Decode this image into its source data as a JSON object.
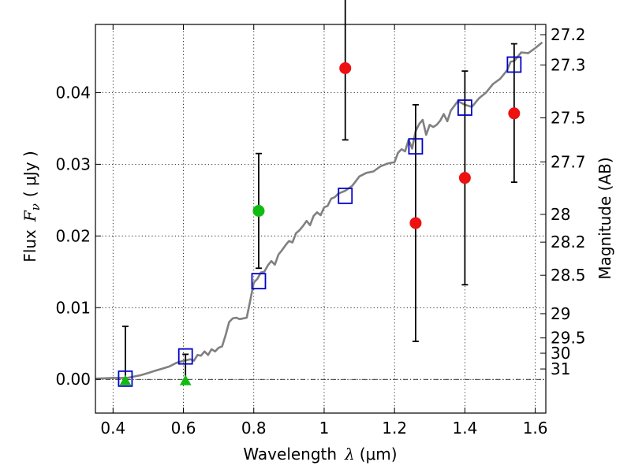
{
  "chart_data": {
    "type": "scatter",
    "xlabel_text": "Wavelength",
    "xlabel_symbol": "λ",
    "xlabel_unit": "(μm)",
    "ylabel_text": "Flux",
    "ylabel_symbol": "F",
    "ylabel_symbol_sub": "ν",
    "ylabel_unit": "( μJy )",
    "y2label": "Magnitude (AB)",
    "xlim": [
      0.35,
      1.63
    ],
    "ylim": [
      -0.0047,
      0.0495
    ],
    "grid": true,
    "x_ticks": [
      {
        "value": 0.4,
        "label": "0.4"
      },
      {
        "value": 0.6,
        "label": "0.6"
      },
      {
        "value": 0.8,
        "label": "0.8"
      },
      {
        "value": 1.0,
        "label": "1"
      },
      {
        "value": 1.2,
        "label": "1.2"
      },
      {
        "value": 1.4,
        "label": "1.4"
      },
      {
        "value": 1.6,
        "label": "1.6"
      }
    ],
    "y_ticks": [
      {
        "value": 0.0,
        "label": "0.00"
      },
      {
        "value": 0.01,
        "label": "0.01"
      },
      {
        "value": 0.02,
        "label": "0.02"
      },
      {
        "value": 0.03,
        "label": "0.03"
      },
      {
        "value": 0.04,
        "label": "0.04"
      }
    ],
    "mag_ticks": [
      {
        "label": "27.2",
        "flux": 0.04807
      },
      {
        "label": "27.3",
        "flux": 0.04385
      },
      {
        "label": "27.5",
        "flux": 0.03647
      },
      {
        "label": "27.7",
        "flux": 0.03033
      },
      {
        "label": "28",
        "flux": 0.02301
      },
      {
        "label": "28.2",
        "flux": 0.01914
      },
      {
        "label": "28.5",
        "flux": 0.01452
      },
      {
        "label": "29",
        "flux": 0.00916
      },
      {
        "label": "29.5",
        "flux": 0.00578
      },
      {
        "label": "30",
        "flux": 0.00365
      },
      {
        "label": "31",
        "flux": 0.00145
      }
    ],
    "model_sed": {
      "name": "model spectrum",
      "color": "#808080",
      "x": [
        0.35,
        0.4,
        0.42,
        0.44,
        0.46,
        0.48,
        0.5,
        0.52,
        0.54,
        0.56,
        0.58,
        0.6,
        0.62,
        0.63,
        0.64,
        0.65,
        0.66,
        0.67,
        0.68,
        0.69,
        0.7,
        0.71,
        0.72,
        0.73,
        0.74,
        0.75,
        0.76,
        0.78,
        0.79,
        0.8,
        0.81,
        0.82,
        0.83,
        0.84,
        0.85,
        0.86,
        0.87,
        0.88,
        0.89,
        0.9,
        0.91,
        0.92,
        0.93,
        0.94,
        0.95,
        0.96,
        0.97,
        0.98,
        0.99,
        1.0,
        1.01,
        1.02,
        1.03,
        1.04,
        1.06,
        1.08,
        1.1,
        1.12,
        1.14,
        1.16,
        1.18,
        1.2,
        1.21,
        1.22,
        1.23,
        1.24,
        1.25,
        1.26,
        1.27,
        1.28,
        1.29,
        1.3,
        1.31,
        1.32,
        1.33,
        1.34,
        1.35,
        1.36,
        1.38,
        1.4,
        1.42,
        1.44,
        1.46,
        1.48,
        1.5,
        1.52,
        1.53,
        1.54,
        1.56,
        1.58,
        1.6,
        1.62
      ],
      "y": [
        0.0001,
        0.0002,
        0.0002,
        0.0002,
        0.0004,
        0.0006,
        0.0009,
        0.0012,
        0.0015,
        0.0018,
        0.0023,
        0.0026,
        0.0028,
        0.0026,
        0.0034,
        0.0033,
        0.0039,
        0.0034,
        0.0042,
        0.0039,
        0.0044,
        0.0046,
        0.0062,
        0.008,
        0.0085,
        0.0086,
        0.0084,
        0.0086,
        0.011,
        0.0135,
        0.014,
        0.0149,
        0.015,
        0.0159,
        0.0165,
        0.016,
        0.0174,
        0.018,
        0.0187,
        0.0193,
        0.0191,
        0.0204,
        0.0208,
        0.0214,
        0.0221,
        0.0215,
        0.0228,
        0.0233,
        0.0229,
        0.024,
        0.0242,
        0.0252,
        0.0254,
        0.0259,
        0.0263,
        0.027,
        0.0283,
        0.0288,
        0.029,
        0.0297,
        0.0301,
        0.0303,
        0.0316,
        0.0321,
        0.0318,
        0.0334,
        0.0322,
        0.0346,
        0.0356,
        0.0362,
        0.0341,
        0.0355,
        0.0352,
        0.0355,
        0.0361,
        0.037,
        0.036,
        0.0375,
        0.0388,
        0.0383,
        0.038,
        0.0392,
        0.04,
        0.0412,
        0.0419,
        0.0431,
        0.0443,
        0.0444,
        0.0456,
        0.0455,
        0.0462,
        0.047
      ]
    },
    "series": [
      {
        "name": "model photometry (blue squares)",
        "marker": "square",
        "color": "#0000cc",
        "x": [
          0.435,
          0.606,
          0.814,
          1.06,
          1.26,
          1.4,
          1.54
        ],
        "y": [
          0.0001,
          0.0032,
          0.0137,
          0.0256,
          0.0325,
          0.0379,
          0.0439
        ]
      },
      {
        "name": "measured flux (red circles)",
        "marker": "circle",
        "color": "#ee1111",
        "x": [
          1.06,
          1.26,
          1.4,
          1.54
        ],
        "y": [
          0.0434,
          0.0218,
          0.0281,
          0.0371
        ],
        "err_low": [
          0.01,
          0.0165,
          0.0149,
          0.0096
        ],
        "err_high": [
          0.01,
          0.0165,
          0.0149,
          0.0097
        ]
      },
      {
        "name": "measured flux (green circle)",
        "marker": "circle",
        "color": "#11bb11",
        "x": [
          0.814
        ],
        "y": [
          0.0235
        ],
        "err_low": [
          0.008
        ],
        "err_high": [
          0.008
        ]
      },
      {
        "name": "upper limits (green triangles)",
        "marker": "triangle",
        "color": "#11bb11",
        "x": [
          0.435,
          0.606
        ],
        "y": [
          -0.0002,
          -0.0002
        ],
        "err_low": [
          0.0,
          0.0
        ],
        "err_high": [
          0.0076,
          0.0037
        ]
      }
    ]
  }
}
